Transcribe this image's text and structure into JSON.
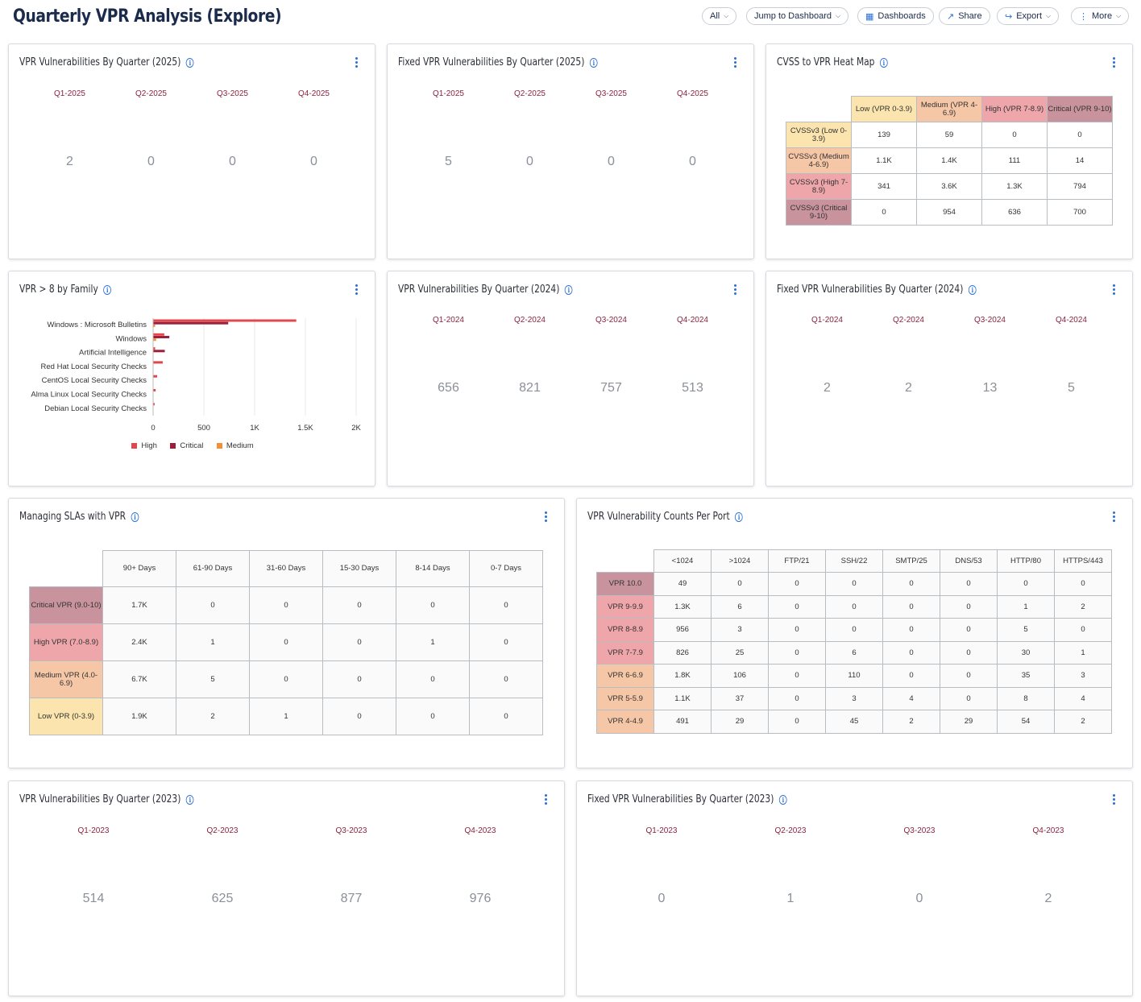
{
  "page": {
    "title": "Quarterly VPR Analysis (Explore)"
  },
  "toolbar": {
    "all": "All",
    "jump": "Jump to Dashboard",
    "dashboards": "Dashboards",
    "share": "Share",
    "export": "Export",
    "more": "More"
  },
  "cards": {
    "vpr2025": {
      "title": "VPR Vulnerabilities By Quarter (2025)",
      "labels": [
        "Q1-2025",
        "Q2-2025",
        "Q3-2025",
        "Q4-2025"
      ],
      "values": [
        "2",
        "0",
        "0",
        "0"
      ]
    },
    "fixed2025": {
      "title": "Fixed VPR Vulnerabilities By Quarter (2025)",
      "labels": [
        "Q1-2025",
        "Q2-2025",
        "Q3-2025",
        "Q4-2025"
      ],
      "values": [
        "5",
        "0",
        "0",
        "0"
      ]
    },
    "heatmap": {
      "title": "CVSS to VPR Heat Map",
      "cols": [
        "Low (VPR 0-3.9)",
        "Medium (VPR 4-6.9)",
        "High (VPR 7-8.9)",
        "Critical (VPR 9-10)"
      ],
      "col_colors": [
        "#fbe4ae",
        "#f6c7a6",
        "#eea6aa",
        "#c8939d"
      ],
      "rows": [
        {
          "label": "CVSSv3 (Low 0-3.9)",
          "color": "#fbe4ae",
          "cells": [
            "139",
            "59",
            "0",
            "0"
          ]
        },
        {
          "label": "CVSSv3 (Medium 4-6.9)",
          "color": "#f6c7a6",
          "cells": [
            "1.1K",
            "1.4K",
            "111",
            "14"
          ]
        },
        {
          "label": "CVSSv3 (High 7-8.9)",
          "color": "#eea6aa",
          "cells": [
            "341",
            "3.6K",
            "1.3K",
            "794"
          ]
        },
        {
          "label": "CVSSv3 (Critical 9-10)",
          "color": "#c8939d",
          "cells": [
            "0",
            "954",
            "636",
            "700"
          ]
        }
      ]
    },
    "family": {
      "title": "VPR > 8 by Family",
      "ticks": [
        "0",
        "500",
        "1K",
        "1.5K",
        "2K"
      ],
      "legend": [
        {
          "name": "High",
          "color": "#e0484d"
        },
        {
          "name": "Critical",
          "color": "#9c1f3a"
        },
        {
          "name": "Medium",
          "color": "#f2903a"
        }
      ]
    },
    "vpr2024": {
      "title": "VPR Vulnerabilities By Quarter (2024)",
      "labels": [
        "Q1-2024",
        "Q2-2024",
        "Q3-2024",
        "Q4-2024"
      ],
      "values": [
        "656",
        "821",
        "757",
        "513"
      ]
    },
    "fixed2024": {
      "title": "Fixed VPR Vulnerabilities By Quarter (2024)",
      "labels": [
        "Q1-2024",
        "Q2-2024",
        "Q3-2024",
        "Q4-2024"
      ],
      "values": [
        "2",
        "2",
        "13",
        "5"
      ]
    },
    "sla": {
      "title": "Managing SLAs with VPR",
      "cols": [
        "90+ Days",
        "61-90 Days",
        "31-60 Days",
        "15-30 Days",
        "8-14 Days",
        "0-7 Days"
      ],
      "rows": [
        {
          "label": "Critical VPR (9.0-10)",
          "color": "#c8939d",
          "cells": [
            "1.7K",
            "0",
            "0",
            "0",
            "0",
            "0"
          ]
        },
        {
          "label": "High VPR (7.0-8.9)",
          "color": "#eea6aa",
          "cells": [
            "2.4K",
            "1",
            "0",
            "0",
            "1",
            "0"
          ]
        },
        {
          "label": "Medium VPR (4.0-6.9)",
          "color": "#f6c7a6",
          "cells": [
            "6.7K",
            "5",
            "0",
            "0",
            "0",
            "0"
          ]
        },
        {
          "label": "Low VPR (0-3.9)",
          "color": "#fbe4ae",
          "cells": [
            "1.9K",
            "2",
            "1",
            "0",
            "0",
            "0"
          ]
        }
      ]
    },
    "port": {
      "title": "VPR Vulnerability Counts Per Port",
      "cols": [
        "<1024",
        ">1024",
        "FTP/21",
        "SSH/22",
        "SMTP/25",
        "DNS/53",
        "HTTP/80",
        "HTTPS/443"
      ],
      "rows": [
        {
          "label": "VPR 10.0",
          "color": "#c8939d",
          "cells": [
            "49",
            "0",
            "0",
            "0",
            "0",
            "0",
            "0",
            "0"
          ]
        },
        {
          "label": "VPR 9-9.9",
          "color": "#eea6aa",
          "cells": [
            "1.3K",
            "6",
            "0",
            "0",
            "0",
            "0",
            "1",
            "2"
          ]
        },
        {
          "label": "VPR 8-8.9",
          "color": "#eea6aa",
          "cells": [
            "956",
            "3",
            "0",
            "0",
            "0",
            "0",
            "5",
            "0"
          ]
        },
        {
          "label": "VPR 7-7.9",
          "color": "#eea6aa",
          "cells": [
            "826",
            "25",
            "0",
            "6",
            "0",
            "0",
            "30",
            "1"
          ]
        },
        {
          "label": "VPR 6-6.9",
          "color": "#f6c7a6",
          "cells": [
            "1.8K",
            "106",
            "0",
            "110",
            "0",
            "0",
            "35",
            "3"
          ]
        },
        {
          "label": "VPR 5-5.9",
          "color": "#f6c7a6",
          "cells": [
            "1.1K",
            "37",
            "0",
            "3",
            "4",
            "0",
            "8",
            "4"
          ]
        },
        {
          "label": "VPR 4-4.9",
          "color": "#f6c7a6",
          "cells": [
            "491",
            "29",
            "0",
            "45",
            "2",
            "29",
            "54",
            "2"
          ]
        }
      ]
    },
    "vpr2023": {
      "title": "VPR Vulnerabilities By Quarter (2023)",
      "labels": [
        "Q1-2023",
        "Q2-2023",
        "Q3-2023",
        "Q4-2023"
      ],
      "values": [
        "514",
        "625",
        "877",
        "976"
      ]
    },
    "fixed2023": {
      "title": "Fixed VPR Vulnerabilities By Quarter (2023)",
      "labels": [
        "Q1-2023",
        "Q2-2023",
        "Q3-2023",
        "Q4-2023"
      ],
      "values": [
        "0",
        "1",
        "0",
        "2"
      ]
    }
  },
  "chart_data": {
    "type": "bar",
    "orientation": "horizontal",
    "title": "VPR > 8 by Family",
    "categories": [
      "Windows : Microsoft Bulletins",
      "Windows",
      "Artificial Intelligence",
      "Red Hat Local Security Checks",
      "CentOS Local Security Checks",
      "Alma Linux Local Security Checks",
      "Debian Local Security Checks"
    ],
    "series": [
      {
        "name": "High",
        "values": [
          1410,
          110,
          20,
          95,
          40,
          25,
          15
        ]
      },
      {
        "name": "Critical",
        "values": [
          740,
          160,
          115,
          0,
          0,
          0,
          0
        ]
      },
      {
        "name": "Medium",
        "values": [
          20,
          30,
          0,
          0,
          0,
          0,
          0
        ]
      }
    ],
    "xlim": [
      0,
      2000
    ],
    "xticks": [
      0,
      500,
      1000,
      1500,
      2000
    ],
    "grid": true,
    "legend": "bottom"
  }
}
